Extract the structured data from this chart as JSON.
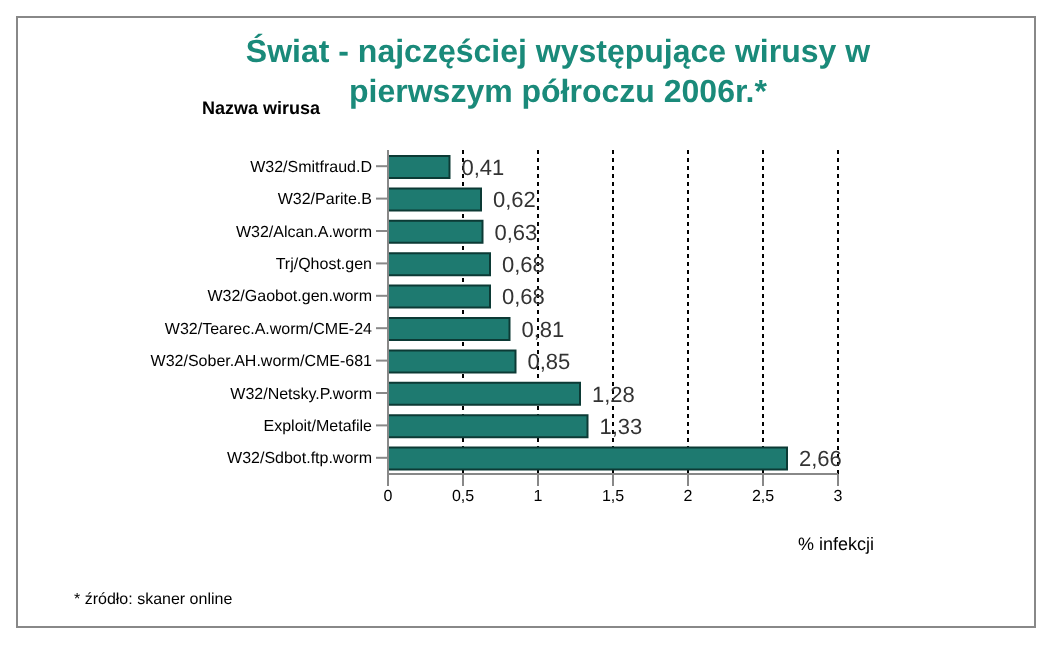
{
  "chart_data": {
    "type": "bar",
    "orientation": "horizontal",
    "title": "Świat - najczęściej występujące wirusy w pierwszym półroczu 2006r.*",
    "ylabel": "Nazwa wirusa",
    "xlabel": "% infekcji",
    "categories": [
      "W32/Smitfraud.D",
      "W32/Parite.B",
      "W32/Alcan.A.worm",
      "Trj/Qhost.gen",
      "W32/Gaobot.gen.worm",
      "W32/Tearec.A.worm/CME-24",
      "W32/Sober.AH.worm/CME-681",
      "W32/Netsky.P.worm",
      "Exploit/Metafile",
      "W32/Sdbot.ftp.worm"
    ],
    "values": [
      0.41,
      0.62,
      0.63,
      0.68,
      0.68,
      0.81,
      0.85,
      1.28,
      1.33,
      2.66
    ],
    "value_labels": [
      "0,41",
      "0,62",
      "0,63",
      "0,68",
      "0,68",
      "0,81",
      "0,85",
      "1,28",
      "1,33",
      "2,66"
    ],
    "color": "#1e7a70",
    "xlim": [
      0,
      3
    ],
    "xticks": [
      0,
      {
        "value": 0.5,
        "label": "0,5"
      },
      1,
      {
        "value": 1.5,
        "label": "1,5"
      },
      2,
      {
        "value": 2.5,
        "label": "2,5"
      },
      3
    ],
    "grid": "x",
    "legend": false,
    "annotations": [
      "* źródło: skaner online"
    ]
  }
}
